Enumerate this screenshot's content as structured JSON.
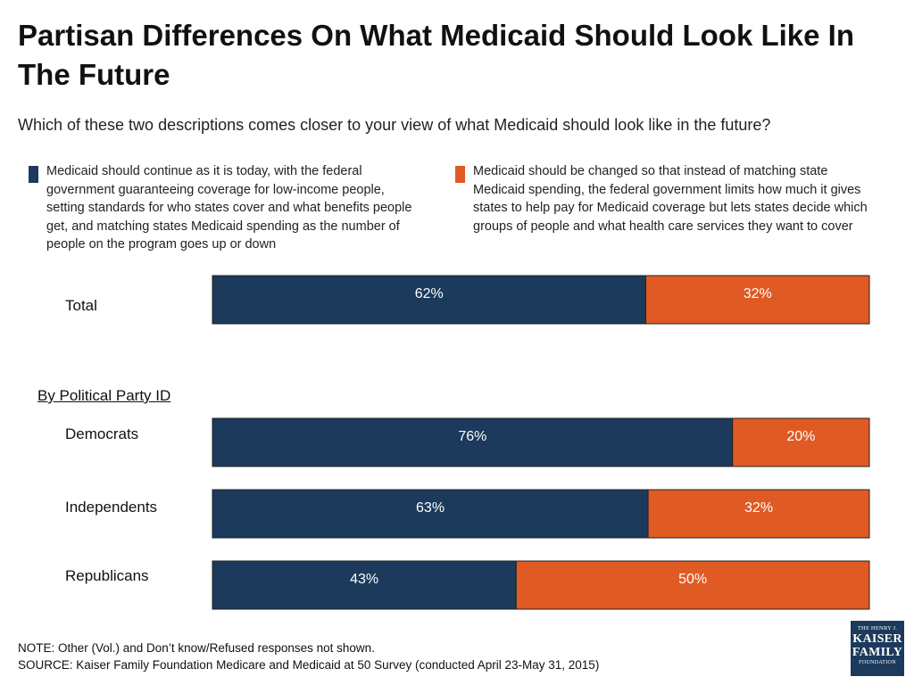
{
  "title": "Partisan Differences On What Medicaid Should Look Like In The Future",
  "subtitle": "Which of these two descriptions comes closer to your view of what Medicaid should look like in the future?",
  "colors": {
    "continue": "#1b3a5c",
    "change": "#e05a24"
  },
  "chart_data": {
    "type": "bar",
    "orientation": "horizontal",
    "stacked": true,
    "categories": [
      "Total",
      "Democrats",
      "Independents",
      "Republicans"
    ],
    "series": [
      {
        "name": "Medicaid should continue as it is today, with the federal government guaranteeing coverage for low-income people, setting standards for who states cover and what benefits people get, and matching states Medicaid spending as the number of people on the program goes up or down",
        "values": [
          62,
          76,
          63,
          43
        ],
        "labels": [
          "62%",
          "76%",
          "63%",
          "43%"
        ]
      },
      {
        "name": "Medicaid should be changed so that instead of matching state Medicaid spending, the federal government limits how much it gives states to help pay for Medicaid coverage but lets states decide which groups of people and what health care services they want to cover",
        "values": [
          32,
          20,
          32,
          50
        ],
        "labels": [
          "32%",
          "20%",
          "32%",
          "50%"
        ]
      }
    ],
    "group_label": "By Political Party ID",
    "grid": false,
    "legend": "top"
  },
  "notes": {
    "note": "NOTE: Other (Vol.) and Don’t know/Refused responses not shown.",
    "source": "SOURCE: Kaiser Family Foundation Medicare and Medicaid at 50 Survey (conducted April 23-May 31, 2015)"
  },
  "logo": {
    "line1": "THE HENRY J.",
    "line2": "KAISER",
    "line3": "FAMILY",
    "line4": "FOUNDATION"
  }
}
